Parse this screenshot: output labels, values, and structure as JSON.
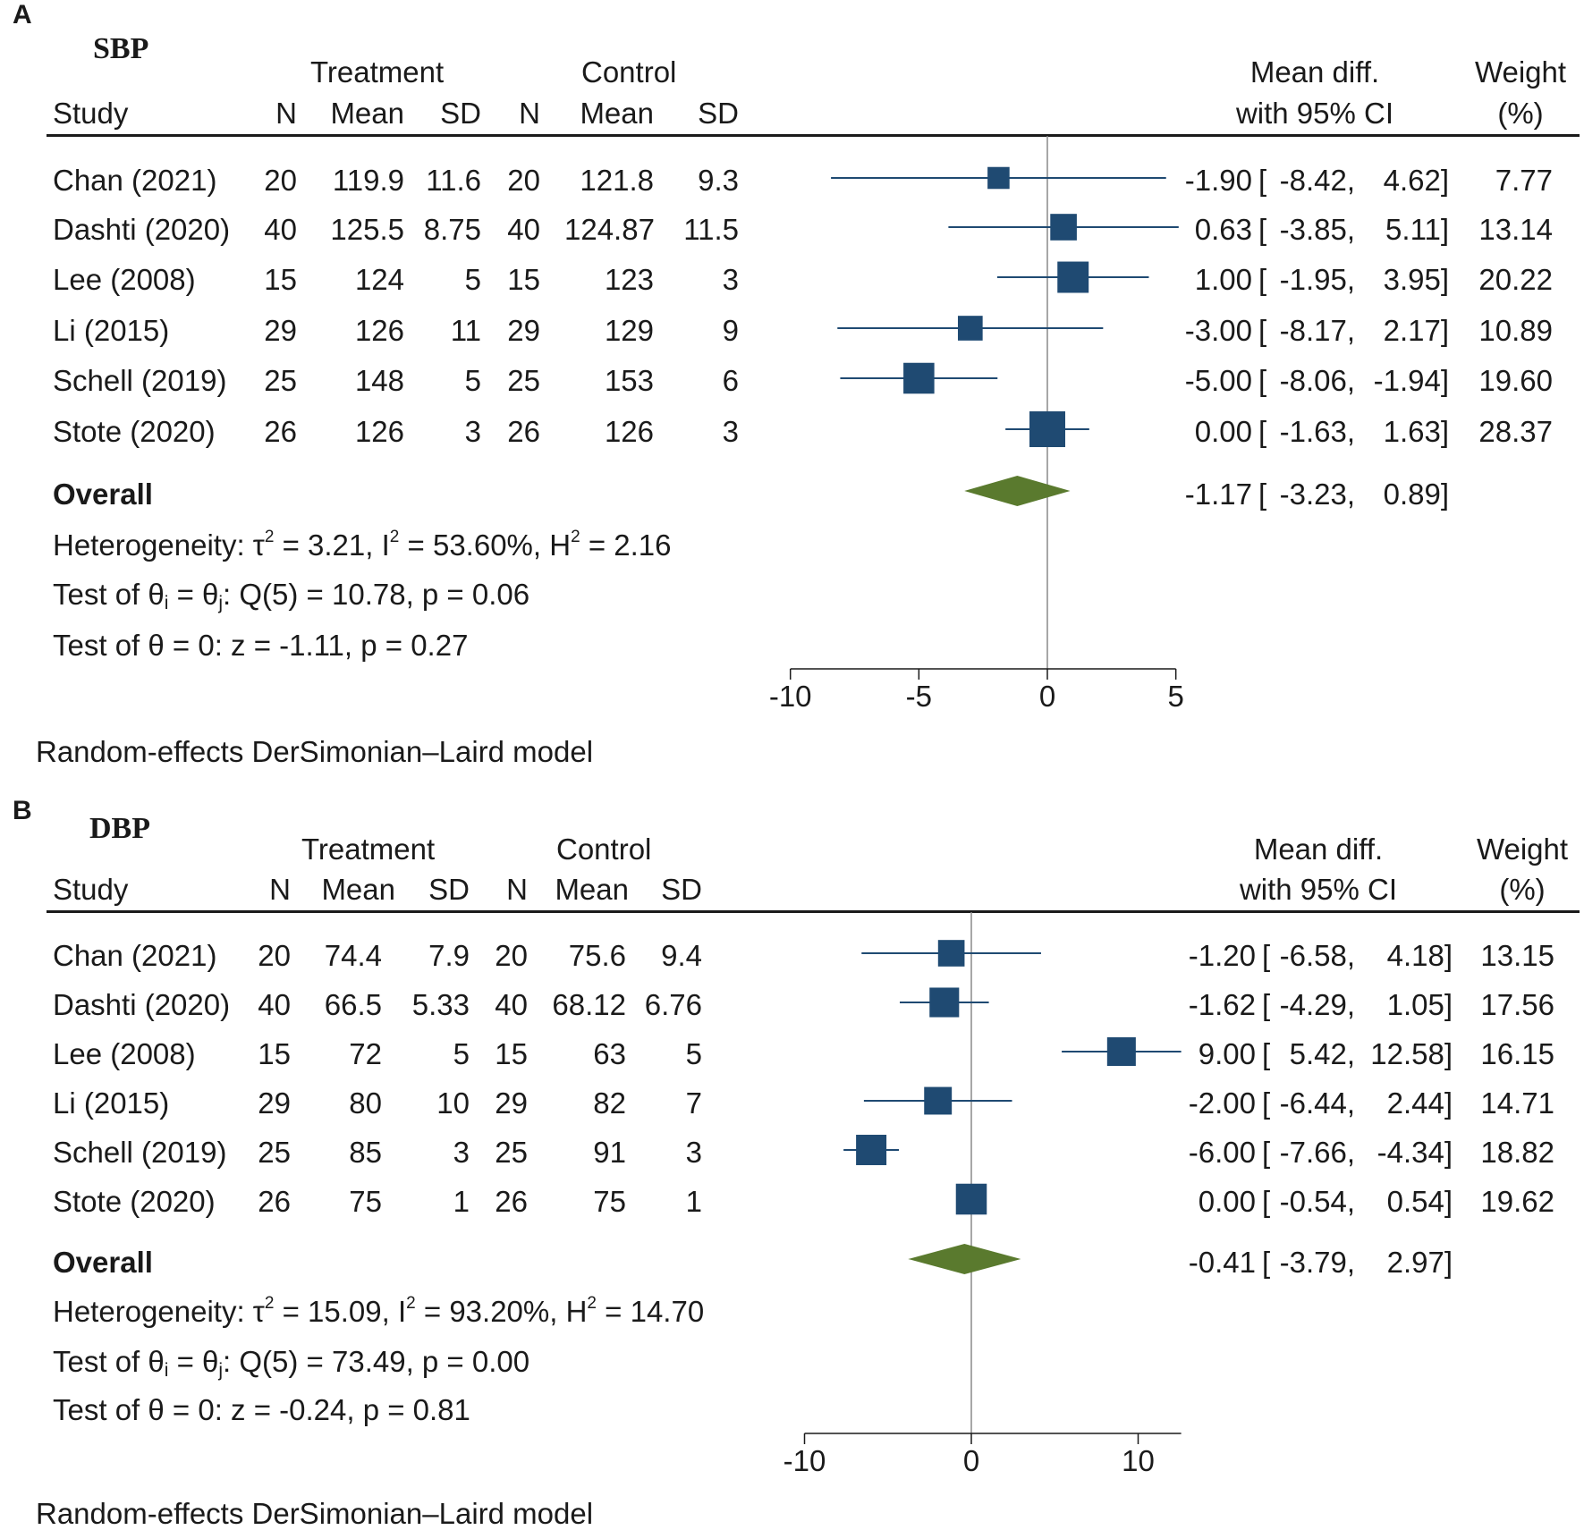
{
  "panels": [
    {
      "letter": "A",
      "title": "SBP",
      "headers": {
        "treatment": "Treatment",
        "control": "Control",
        "study": "Study",
        "n": "N",
        "mean": "Mean",
        "sd": "SD",
        "md_line1": "Mean diff.",
        "md_line2": "with 95% CI",
        "w_line1": "Weight",
        "w_line2": "(%)"
      },
      "rows": [
        {
          "study": "Chan (2021)",
          "tn": "20",
          "tmean": "119.9",
          "tsd": "11.6",
          "cn": "20",
          "cmean": "121.8",
          "csd": "9.3",
          "md": "-1.90",
          "lo": "-8.42,",
          "hi": "4.62]",
          "weight": "7.77"
        },
        {
          "study": "Dashti (2020)",
          "tn": "40",
          "tmean": "125.5",
          "tsd": "8.75",
          "cn": "40",
          "cmean": "124.87",
          "csd": "11.5",
          "md": "0.63",
          "lo": "-3.85,",
          "hi": "5.11]",
          "weight": "13.14"
        },
        {
          "study": "Lee (2008)",
          "tn": "15",
          "tmean": "124",
          "tsd": "5",
          "cn": "15",
          "cmean": "123",
          "csd": "3",
          "md": "1.00",
          "lo": "-1.95,",
          "hi": "3.95]",
          "weight": "20.22"
        },
        {
          "study": "Li (2015)",
          "tn": "29",
          "tmean": "126",
          "tsd": "11",
          "cn": "29",
          "cmean": "129",
          "csd": "9",
          "md": "-3.00",
          "lo": "-8.17,",
          "hi": "2.17]",
          "weight": "10.89"
        },
        {
          "study": "Schell (2019)",
          "tn": "25",
          "tmean": "148",
          "tsd": "5",
          "cn": "25",
          "cmean": "153",
          "csd": "6",
          "md": "-5.00",
          "lo": "-8.06,",
          "hi": "-1.94]",
          "weight": "19.60"
        },
        {
          "study": "Stote (2020)",
          "tn": "26",
          "tmean": "126",
          "tsd": "3",
          "cn": "26",
          "cmean": "126",
          "csd": "3",
          "md": "0.00",
          "lo": "-1.63,",
          "hi": "1.63]",
          "weight": "28.37"
        }
      ],
      "overall": {
        "label": "Overall",
        "md": "-1.17",
        "lo": "-3.23,",
        "hi": "0.89]"
      },
      "heterogeneity": {
        "prefix": "Heterogeneity: τ",
        "tau2": "= 3.21, I",
        "i2": "= 53.60%, H",
        "h2": "= 2.16",
        "sup": "2"
      },
      "test_q": {
        "prefix": "Test of θ",
        "i": "i",
        "eq": " = θ",
        "j": "j",
        "rest": ": Q(5) = 10.78, p = 0.06"
      },
      "test_z": "Test of θ = 0: z = -1.11, p = 0.27",
      "model": "Random-effects DerSimonian–Laird model"
    },
    {
      "letter": "B",
      "title": "DBP",
      "headers": {
        "treatment": "Treatment",
        "control": "Control",
        "study": "Study",
        "n": "N",
        "mean": "Mean",
        "sd": "SD",
        "md_line1": "Mean diff.",
        "md_line2": "with 95% CI",
        "w_line1": "Weight",
        "w_line2": "(%)"
      },
      "rows": [
        {
          "study": "Chan (2021)",
          "tn": "20",
          "tmean": "74.4",
          "tsd": "7.9",
          "cn": "20",
          "cmean": "75.6",
          "csd": "9.4",
          "md": "-1.20",
          "lo": "-6.58,",
          "hi": "4.18]",
          "weight": "13.15"
        },
        {
          "study": "Dashti (2020)",
          "tn": "40",
          "tmean": "66.5",
          "tsd": "5.33",
          "cn": "40",
          "cmean": "68.12",
          "csd": "6.76",
          "md": "-1.62",
          "lo": "-4.29,",
          "hi": "1.05]",
          "weight": "17.56"
        },
        {
          "study": "Lee (2008)",
          "tn": "15",
          "tmean": "72",
          "tsd": "5",
          "cn": "15",
          "cmean": "63",
          "csd": "5",
          "md": "9.00",
          "lo": "5.42,",
          "hi": "12.58]",
          "weight": "16.15"
        },
        {
          "study": "Li (2015)",
          "tn": "29",
          "tmean": "80",
          "tsd": "10",
          "cn": "29",
          "cmean": "82",
          "csd": "7",
          "md": "-2.00",
          "lo": "-6.44,",
          "hi": "2.44]",
          "weight": "14.71"
        },
        {
          "study": "Schell (2019)",
          "tn": "25",
          "tmean": "85",
          "tsd": "3",
          "cn": "25",
          "cmean": "91",
          "csd": "3",
          "md": "-6.00",
          "lo": "-7.66,",
          "hi": "-4.34]",
          "weight": "18.82"
        },
        {
          "study": "Stote (2020)",
          "tn": "26",
          "tmean": "75",
          "tsd": "1",
          "cn": "26",
          "cmean": "75",
          "csd": "1",
          "md": "0.00",
          "lo": "-0.54,",
          "hi": "0.54]",
          "weight": "19.62"
        }
      ],
      "overall": {
        "label": "Overall",
        "md": "-0.41",
        "lo": "-3.79,",
        "hi": "2.97]"
      },
      "heterogeneity": {
        "prefix": "Heterogeneity: τ",
        "tau2": "= 15.09, I",
        "i2": "= 93.20%, H",
        "h2": "= 14.70",
        "sup": "2"
      },
      "test_q": {
        "prefix": "Test of θ",
        "i": "i",
        "eq": " = θ",
        "j": "j",
        "rest": ": Q(5) = 73.49, p = 0.00"
      },
      "test_z": "Test of θ = 0: z = -0.24, p = 0.81",
      "model": "Random-effects DerSimonian–Laird model"
    }
  ],
  "chart_data": [
    {
      "type": "forest",
      "title": "SBP",
      "xlim": [
        -10,
        5
      ],
      "ticks": [
        -10,
        -5,
        0,
        5
      ],
      "tick_labels": [
        "-10",
        "-5",
        "0",
        "5"
      ],
      "null_value": 0,
      "series": [
        {
          "name": "Chan (2021)",
          "md": -1.9,
          "lo": -8.42,
          "hi": 4.62,
          "weight": 7.77
        },
        {
          "name": "Dashti (2020)",
          "md": 0.63,
          "lo": -3.85,
          "hi": 5.11,
          "weight": 13.14
        },
        {
          "name": "Lee (2008)",
          "md": 1.0,
          "lo": -1.95,
          "hi": 3.95,
          "weight": 20.22
        },
        {
          "name": "Li (2015)",
          "md": -3.0,
          "lo": -8.17,
          "hi": 2.17,
          "weight": 10.89
        },
        {
          "name": "Schell (2019)",
          "md": -5.0,
          "lo": -8.06,
          "hi": -1.94,
          "weight": 19.6
        },
        {
          "name": "Stote (2020)",
          "md": 0.0,
          "lo": -1.63,
          "hi": 1.63,
          "weight": 28.37
        }
      ],
      "overall": {
        "md": -1.17,
        "lo": -3.23,
        "hi": 0.89
      },
      "colors": {
        "marker": "#1f4a72",
        "line": "#1f4a72",
        "diamond": "#5a7a2e",
        "axis": "#1a1a1a",
        "null_line": "#8a8a8a"
      }
    },
    {
      "type": "forest",
      "title": "DBP",
      "xlim": [
        -10,
        12.58
      ],
      "ticks": [
        -10,
        0,
        10
      ],
      "tick_labels": [
        "-10",
        "0",
        "10"
      ],
      "null_value": 0,
      "series": [
        {
          "name": "Chan (2021)",
          "md": -1.2,
          "lo": -6.58,
          "hi": 4.18,
          "weight": 13.15
        },
        {
          "name": "Dashti (2020)",
          "md": -1.62,
          "lo": -4.29,
          "hi": 1.05,
          "weight": 17.56
        },
        {
          "name": "Lee (2008)",
          "md": 9.0,
          "lo": 5.42,
          "hi": 12.58,
          "weight": 16.15
        },
        {
          "name": "Li (2015)",
          "md": -2.0,
          "lo": -6.44,
          "hi": 2.44,
          "weight": 14.71
        },
        {
          "name": "Schell (2019)",
          "md": -6.0,
          "lo": -7.66,
          "hi": -4.34,
          "weight": 18.82
        },
        {
          "name": "Stote (2020)",
          "md": 0.0,
          "lo": -0.54,
          "hi": 0.54,
          "weight": 19.62
        }
      ],
      "overall": {
        "md": -0.41,
        "lo": -3.79,
        "hi": 2.97
      },
      "colors": {
        "marker": "#1f4a72",
        "line": "#1f4a72",
        "diamond": "#5a7a2e",
        "axis": "#1a1a1a",
        "null_line": "#8a8a8a"
      }
    }
  ]
}
